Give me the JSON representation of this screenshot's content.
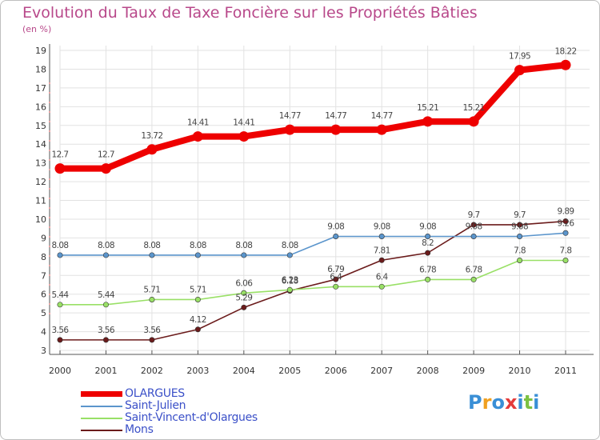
{
  "chart_data": {
    "type": "line",
    "title": "Evolution du Taux de Taxe Foncière sur les Propriétés Bâties",
    "ylabel": "(en %)",
    "xlabel": "",
    "categories": [
      "2000",
      "2001",
      "2002",
      "2003",
      "2004",
      "2005",
      "2006",
      "2007",
      "2008",
      "2009",
      "2010",
      "2011"
    ],
    "ylim": [
      3,
      19
    ],
    "yticks": [
      "3",
      "4",
      "5",
      "6",
      "7",
      "8",
      "9",
      "10",
      "11",
      "12",
      "13",
      "14",
      "15",
      "16",
      "17",
      "18",
      "19"
    ],
    "series": [
      {
        "name": "OLARGUES",
        "color": "#ee0000",
        "values": [
          12.7,
          12.7,
          13.72,
          14.41,
          14.41,
          14.77,
          14.77,
          14.77,
          15.21,
          15.21,
          17.95,
          18.22
        ],
        "labels": [
          "12.7",
          "12.7",
          "13.72",
          "14.41",
          "14.41",
          "14.77",
          "14.77",
          "14.77",
          "15.21",
          "15.21",
          "17.95",
          "18.22"
        ]
      },
      {
        "name": "Saint-Julien",
        "color": "#5b95cc",
        "values": [
          8.08,
          8.08,
          8.08,
          8.08,
          8.08,
          8.08,
          9.08,
          9.08,
          9.08,
          9.08,
          9.08,
          9.26
        ],
        "labels": [
          "8.08",
          "8.08",
          "8.08",
          "8.08",
          "8.08",
          "8.08",
          "9.08",
          "9.08",
          "9.08",
          "9.08",
          "9.08",
          "9.26"
        ]
      },
      {
        "name": "Saint-Vincent-d'Olargues",
        "color": "#99e066",
        "values": [
          5.44,
          5.44,
          5.71,
          5.71,
          6.06,
          6.23,
          6.4,
          6.4,
          6.78,
          6.78,
          7.8,
          7.8
        ],
        "labels": [
          "5.44",
          "5.44",
          "5.71",
          "5.71",
          "6.06",
          "6.23",
          "6.4",
          "6.4",
          "6.78",
          "6.78",
          "7.8",
          "7.8"
        ]
      },
      {
        "name": "Mons",
        "color": "#6b1b1b",
        "values": [
          3.56,
          3.56,
          3.56,
          4.12,
          5.29,
          6.18,
          6.79,
          7.81,
          8.2,
          9.7,
          9.7,
          9.89
        ],
        "labels": [
          "3.56",
          "3.56",
          "3.56",
          "4.12",
          "5.29",
          "6.18",
          "6.79",
          "7.81",
          "8.2",
          "9.7",
          "9.7",
          "9.89"
        ]
      }
    ]
  },
  "logo": {
    "text": "Proxiti"
  }
}
